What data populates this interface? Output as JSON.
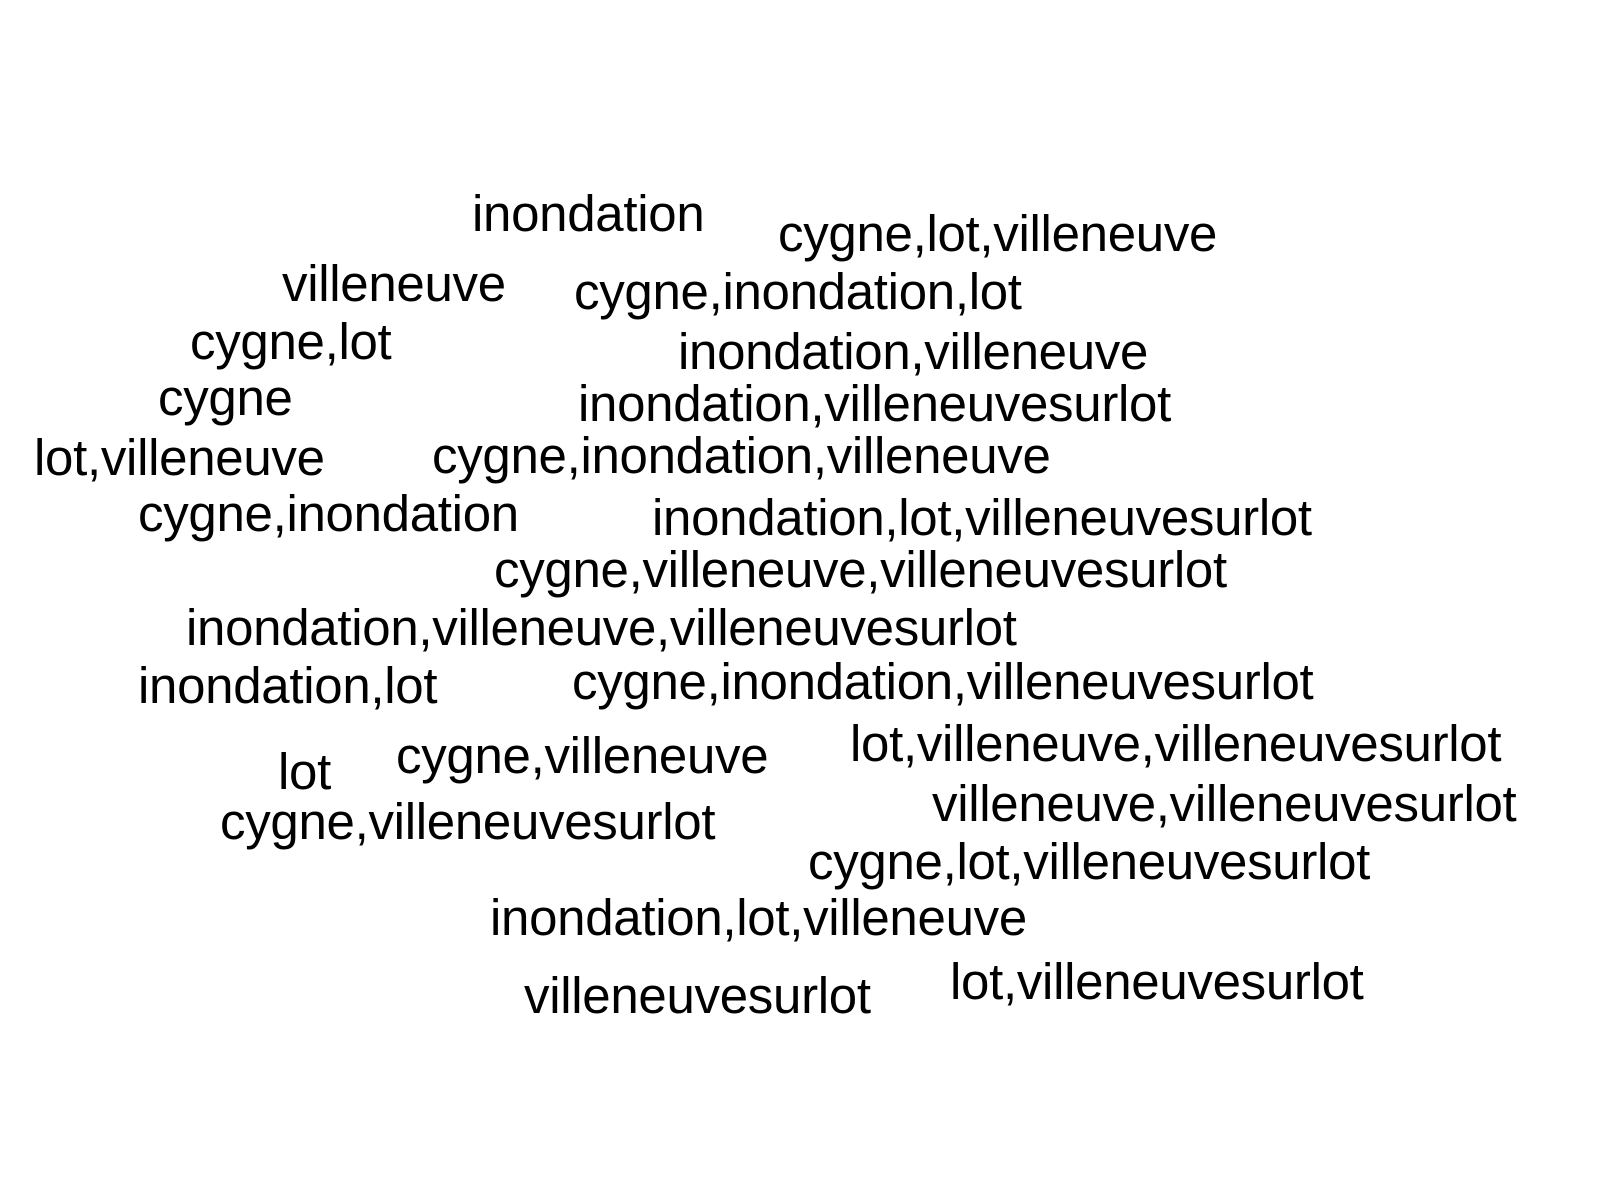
{
  "words": [
    "inondation",
    "cygne,lot,villeneuve",
    "villeneuve",
    "cygne,inondation,lot",
    "cygne,lot",
    "inondation,villeneuve",
    "cygne",
    "inondation,villeneuvesurlot",
    "lot,villeneuve",
    "cygne,inondation,villeneuve",
    "cygne,inondation",
    "inondation,lot,villeneuvesurlot",
    "cygne,villeneuve,villeneuvesurlot",
    "inondation,villeneuve,villeneuvesurlot",
    "inondation,lot",
    "cygne,inondation,villeneuvesurlot",
    "lot",
    "cygne,villeneuve",
    "lot,villeneuve,villeneuvesurlot",
    "cygne,villeneuvesurlot",
    "villeneuve,villeneuvesurlot",
    "cygne,lot,villeneuvesurlot",
    "inondation,lot,villeneuve",
    "villeneuvesurlot",
    "lot,villeneuvesurlot"
  ],
  "colors": {
    "background": "#ffffff",
    "text": "#000000"
  }
}
